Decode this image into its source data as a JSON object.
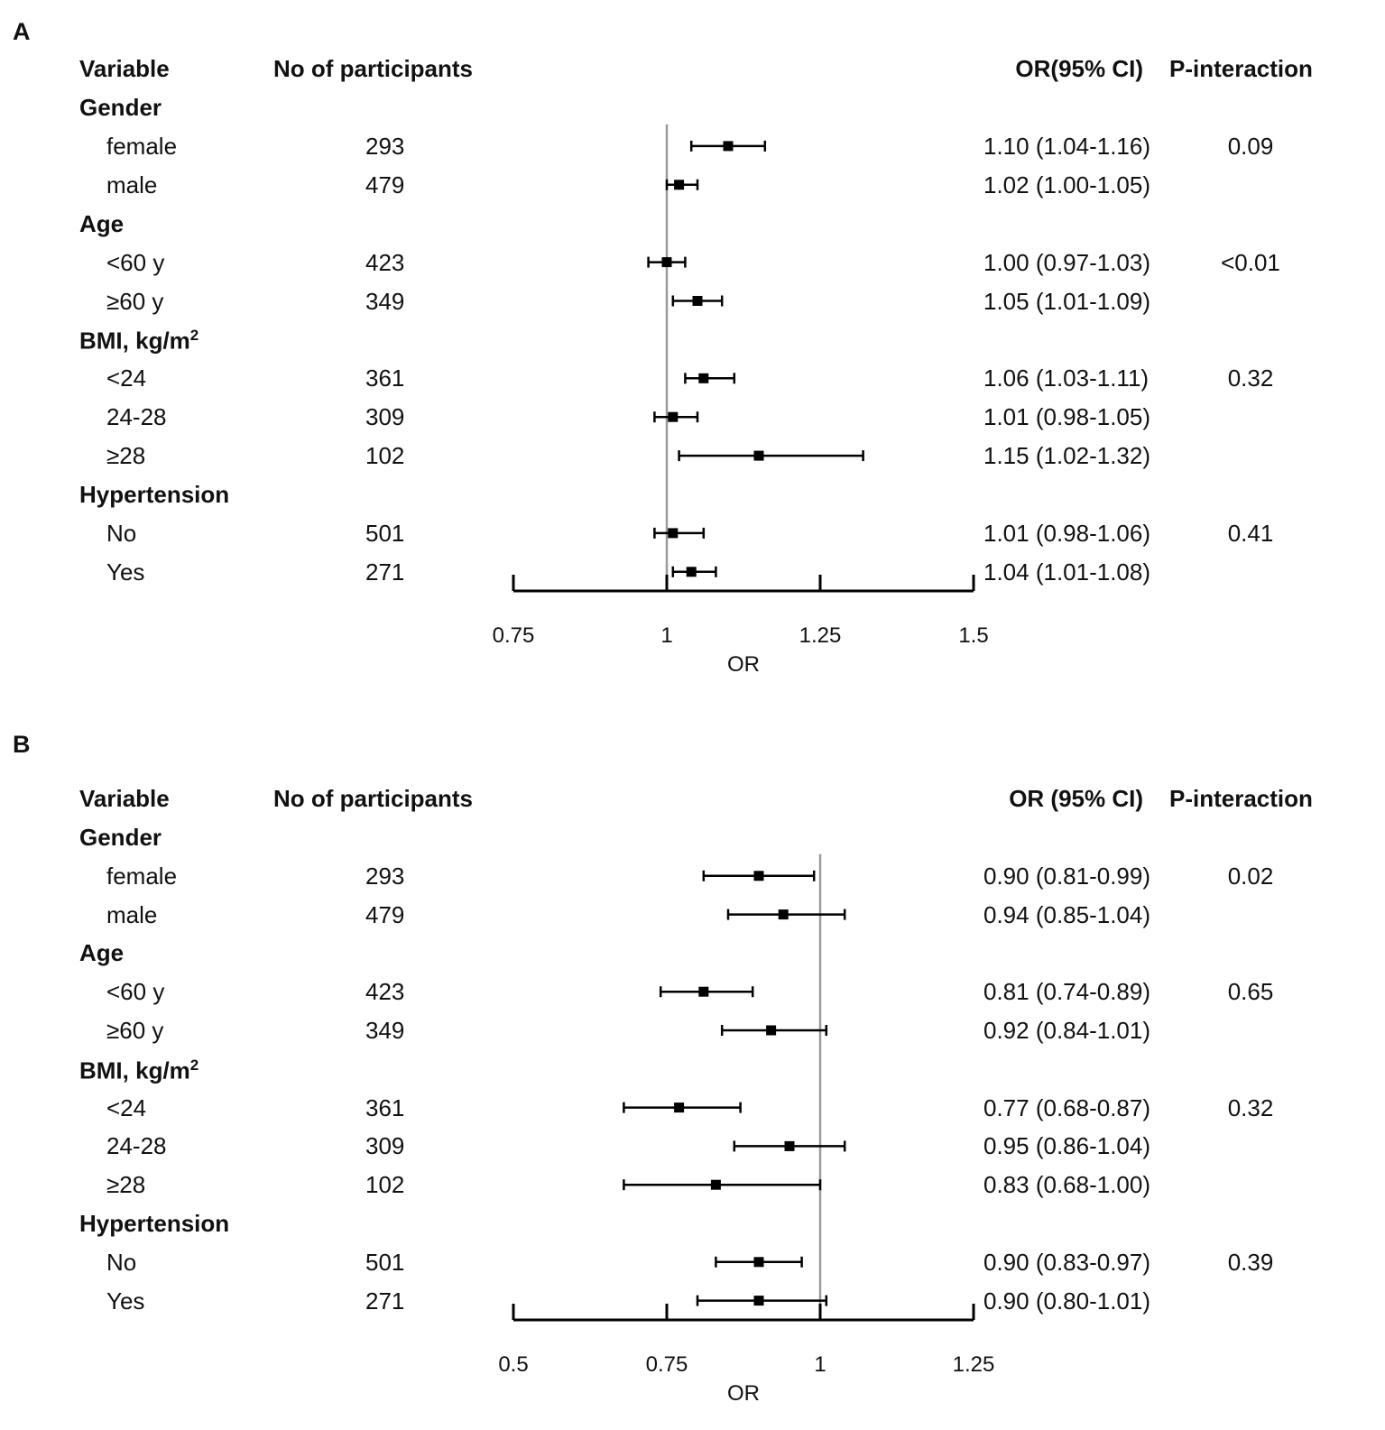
{
  "chart_data": [
    {
      "type": "forest",
      "panel": "A",
      "headers": {
        "variable": "Variable",
        "n": "No of participants",
        "or": "OR(95% CI)",
        "p": "P-interaction"
      },
      "xlabel": "OR",
      "xlim": [
        0.75,
        1.5
      ],
      "xticks": [
        0.75,
        1,
        1.25,
        1.5
      ],
      "xtick_labels": [
        "0.75",
        "1",
        "1.25",
        "1.5"
      ],
      "reference_line": 1,
      "groups": [
        {
          "label": "Gender",
          "sup": "",
          "rows": [
            {
              "label": "female",
              "n": "293",
              "or": 1.1,
              "lo": 1.04,
              "hi": 1.16,
              "ci_text": "1.10 (1.04-1.16)",
              "p": "0.09"
            },
            {
              "label": "male",
              "n": "479",
              "or": 1.02,
              "lo": 1.0,
              "hi": 1.05,
              "ci_text": "1.02 (1.00-1.05)",
              "p": ""
            }
          ]
        },
        {
          "label": "Age",
          "sup": "",
          "rows": [
            {
              "label": "<60 y",
              "n": "423",
              "or": 1.0,
              "lo": 0.97,
              "hi": 1.03,
              "ci_text": "1.00 (0.97-1.03)",
              "p": "<0.01"
            },
            {
              "label": "≥60 y",
              "n": "349",
              "or": 1.05,
              "lo": 1.01,
              "hi": 1.09,
              "ci_text": "1.05 (1.01-1.09)",
              "p": ""
            }
          ]
        },
        {
          "label": "BMI, kg/m",
          "sup": "2",
          "rows": [
            {
              "label": "<24",
              "n": "361",
              "or": 1.06,
              "lo": 1.03,
              "hi": 1.11,
              "ci_text": "1.06 (1.03-1.11)",
              "p": "0.32"
            },
            {
              "label": "24-28",
              "n": "309",
              "or": 1.01,
              "lo": 0.98,
              "hi": 1.05,
              "ci_text": "1.01 (0.98-1.05)",
              "p": ""
            },
            {
              "label": "≥28",
              "n": "102",
              "or": 1.15,
              "lo": 1.02,
              "hi": 1.32,
              "ci_text": "1.15 (1.02-1.32)",
              "p": ""
            }
          ]
        },
        {
          "label": "Hypertension",
          "sup": "",
          "rows": [
            {
              "label": "No",
              "n": "501",
              "or": 1.01,
              "lo": 0.98,
              "hi": 1.06,
              "ci_text": "1.01 (0.98-1.06)",
              "p": "0.41"
            },
            {
              "label": "Yes",
              "n": "271",
              "or": 1.04,
              "lo": 1.01,
              "hi": 1.08,
              "ci_text": "1.04 (1.01-1.08)",
              "p": ""
            }
          ]
        }
      ]
    },
    {
      "type": "forest",
      "panel": "B",
      "headers": {
        "variable": "Variable",
        "n": "No of participants",
        "or": "OR (95% CI)",
        "p": "P-interaction"
      },
      "xlabel": "OR",
      "xlim": [
        0.5,
        1.25
      ],
      "xticks": [
        0.5,
        0.75,
        1,
        1.25
      ],
      "xtick_labels": [
        "0.5",
        "0.75",
        "1",
        "1.25"
      ],
      "reference_line": 1,
      "groups": [
        {
          "label": "Gender",
          "sup": "",
          "rows": [
            {
              "label": "female",
              "n": "293",
              "or": 0.9,
              "lo": 0.81,
              "hi": 0.99,
              "ci_text": "0.90 (0.81-0.99)",
              "p": "0.02"
            },
            {
              "label": "male",
              "n": "479",
              "or": 0.94,
              "lo": 0.85,
              "hi": 1.04,
              "ci_text": "0.94 (0.85-1.04)",
              "p": ""
            }
          ]
        },
        {
          "label": "Age",
          "sup": "",
          "rows": [
            {
              "label": "<60 y",
              "n": "423",
              "or": 0.81,
              "lo": 0.74,
              "hi": 0.89,
              "ci_text": "0.81 (0.74-0.89)",
              "p": "0.65"
            },
            {
              "label": "≥60 y",
              "n": "349",
              "or": 0.92,
              "lo": 0.84,
              "hi": 1.01,
              "ci_text": "0.92 (0.84-1.01)",
              "p": ""
            }
          ]
        },
        {
          "label": "BMI, kg/m",
          "sup": "2",
          "rows": [
            {
              "label": "<24",
              "n": "361",
              "or": 0.77,
              "lo": 0.68,
              "hi": 0.87,
              "ci_text": "0.77 (0.68-0.87)",
              "p": "0.32"
            },
            {
              "label": "24-28",
              "n": "309",
              "or": 0.95,
              "lo": 0.86,
              "hi": 1.04,
              "ci_text": "0.95 (0.86-1.04)",
              "p": ""
            },
            {
              "label": "≥28",
              "n": "102",
              "or": 0.83,
              "lo": 0.68,
              "hi": 1.0,
              "ci_text": "0.83 (0.68-1.00)",
              "p": ""
            }
          ]
        },
        {
          "label": "Hypertension",
          "sup": "",
          "rows": [
            {
              "label": "No",
              "n": "501",
              "or": 0.9,
              "lo": 0.83,
              "hi": 0.97,
              "ci_text": "0.90 (0.83-0.97)",
              "p": "0.39"
            },
            {
              "label": "Yes",
              "n": "271",
              "or": 0.9,
              "lo": 0.8,
              "hi": 1.01,
              "ci_text": "0.90 (0.80-1.01)",
              "p": ""
            }
          ]
        }
      ]
    }
  ]
}
